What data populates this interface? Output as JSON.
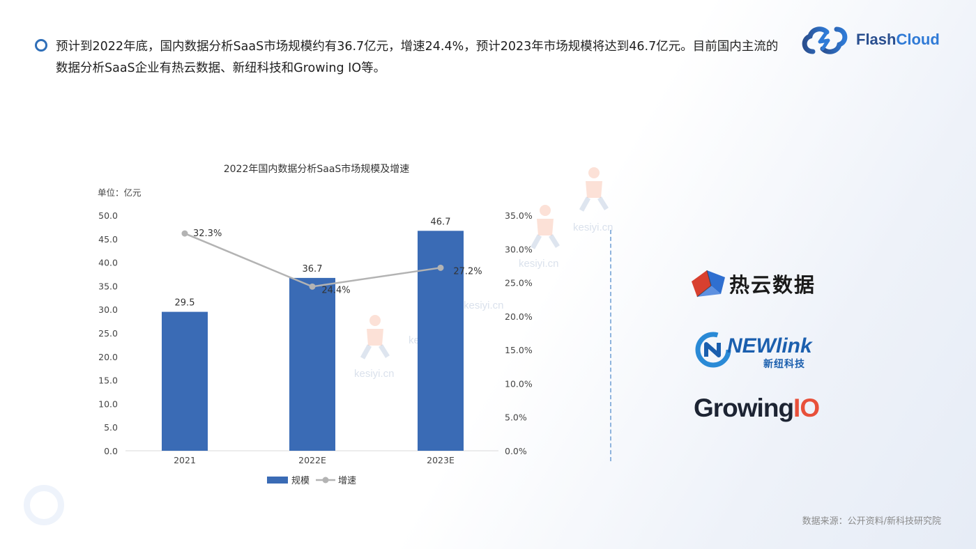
{
  "intro_text": "预计到2022年底，国内数据分析SaaS市场规模约有36.7亿元，增速24.4%，预计2023年市场规模将达到46.7亿元。目前国内主流的数据分析SaaS企业有热云数据、新纽科技和Growing IO等。",
  "brand": {
    "part1": "Flash",
    "part2": "Cloud"
  },
  "logos": {
    "reyun": "热云数据",
    "newlink": "NEWlink",
    "newlink_sub": "新纽科技",
    "growing_main": "Growing",
    "growing_io": "IO"
  },
  "watermark": "kesiyi.cn",
  "source": "数据来源：公开资料/新科技研究院",
  "colors": {
    "bar": "#3a6bb5",
    "line": "#b3b3b3",
    "accent": "#2f6fb8"
  },
  "chart_data": {
    "type": "bar+line",
    "title": "2022年国内数据分析SaaS市场规模及增速",
    "unit_label": "单位：亿元",
    "categories": [
      "2021",
      "2022E",
      "2023E"
    ],
    "series": [
      {
        "name": "规模",
        "type": "bar",
        "axis": "left",
        "values": [
          29.5,
          36.7,
          46.7
        ],
        "labels": [
          "29.5",
          "36.7",
          "46.7"
        ]
      },
      {
        "name": "增速",
        "type": "line",
        "axis": "right",
        "values": [
          32.3,
          24.4,
          27.2
        ],
        "labels": [
          "32.3%",
          "24.4%",
          "27.2%"
        ]
      }
    ],
    "y_left": {
      "min": 0,
      "max": 50,
      "ticks": [
        "0.0",
        "5.0",
        "10.0",
        "15.0",
        "20.0",
        "25.0",
        "30.0",
        "35.0",
        "40.0",
        "45.0",
        "50.0"
      ]
    },
    "y_right": {
      "min": 0,
      "max": 35,
      "ticks": [
        "0.0%",
        "5.0%",
        "10.0%",
        "15.0%",
        "20.0%",
        "25.0%",
        "30.0%",
        "35.0%"
      ]
    },
    "legend": "bottom",
    "grid": false
  }
}
